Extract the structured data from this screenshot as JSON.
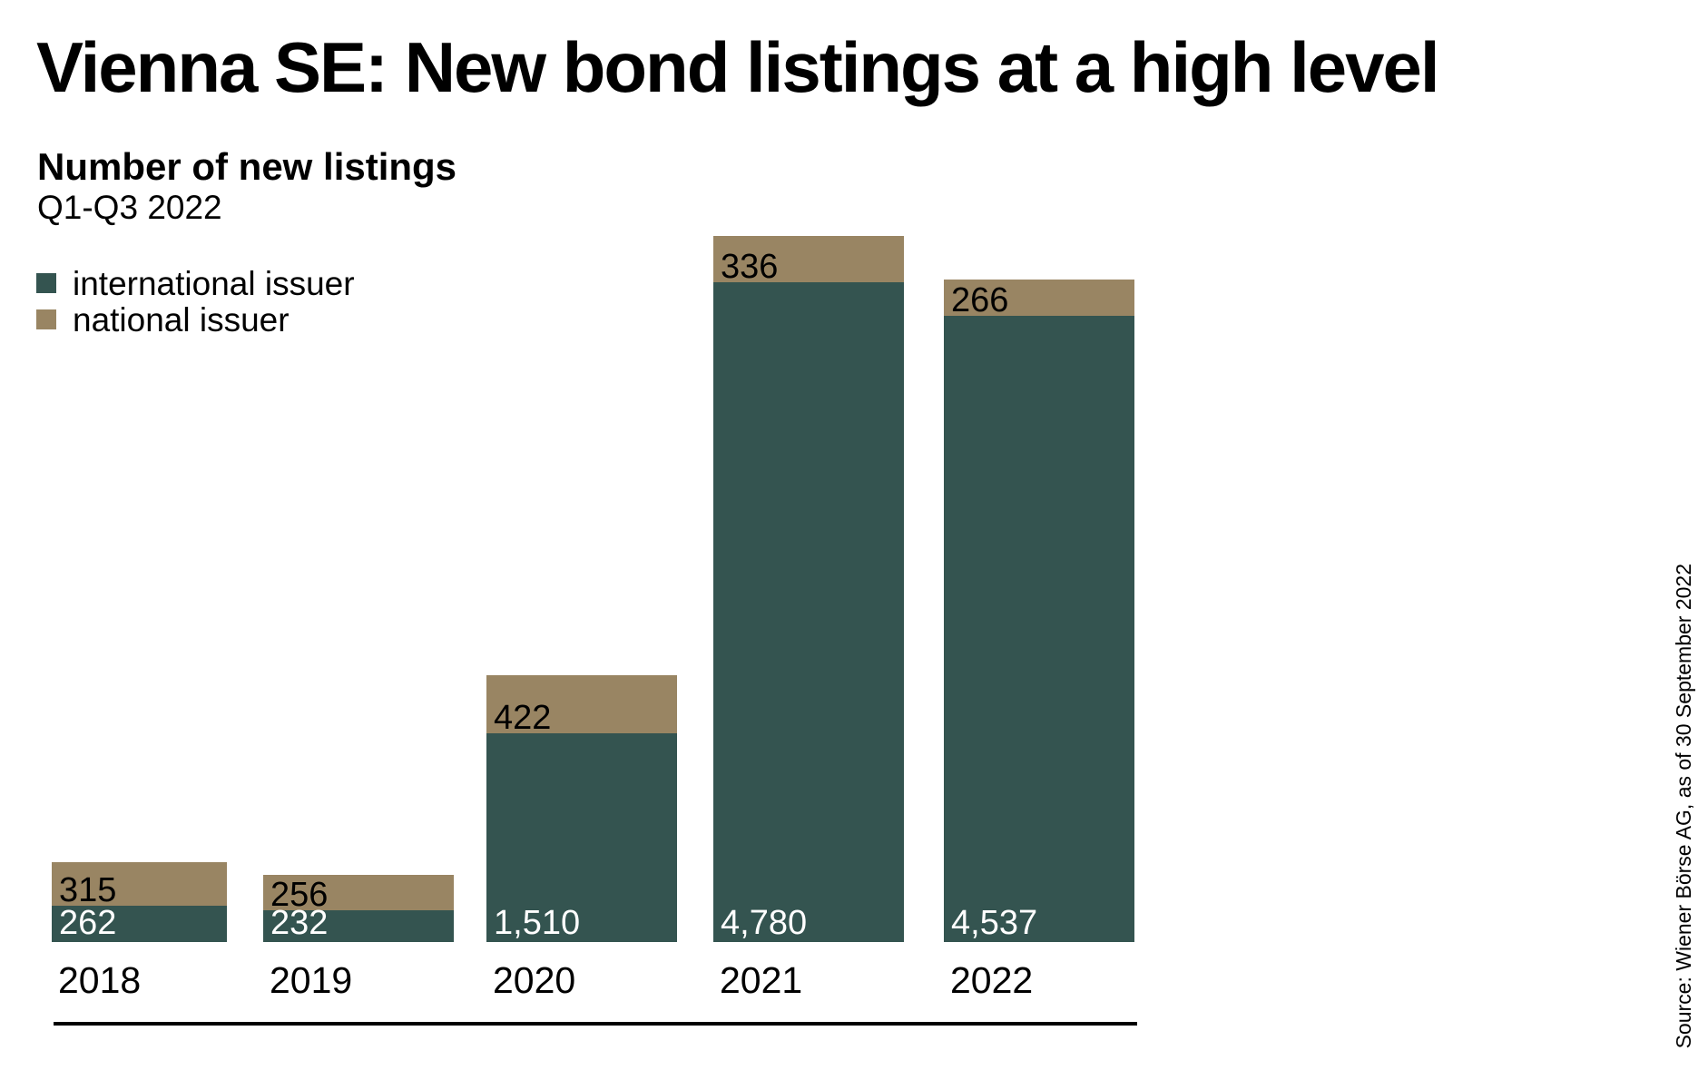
{
  "header": {
    "title": "Vienna SE: New bond listings at a high level",
    "subtitle": "Number of new listings",
    "period": "Q1-Q3 2022"
  },
  "legend": {
    "items": [
      {
        "label": "international issuer",
        "color": "#345450"
      },
      {
        "label": "national issuer",
        "color": "#998563"
      }
    ]
  },
  "source_note": "Source: Wiener Börse AG, as of 30 September 2022",
  "colors": {
    "international_issuer": "#345450",
    "national_issuer": "#998563",
    "label_on_international": "#ffffff",
    "label_on_national": "#000000",
    "axis_line": "#000000",
    "background": "#ffffff"
  },
  "chart_data": {
    "type": "bar",
    "stacked": true,
    "title": "Number of new listings",
    "period": "Q1-Q3 2022",
    "categories": [
      "2018",
      "2019",
      "2020",
      "2021",
      "2022"
    ],
    "series": [
      {
        "name": "international issuer",
        "values": [
          262,
          232,
          1510,
          4780,
          4537
        ],
        "labels": [
          "262",
          "232",
          "1,510",
          "4,780",
          "4,537"
        ],
        "color": "#345450",
        "label_color": "#ffffff"
      },
      {
        "name": "national issuer",
        "values": [
          315,
          256,
          422,
          336,
          266
        ],
        "labels": [
          "315",
          "256",
          "422",
          "336",
          "266"
        ],
        "color": "#998563",
        "label_color": "#000000"
      }
    ],
    "totals": [
      577,
      488,
      1932,
      5116,
      4803
    ],
    "legend_position": "top-left",
    "grid": false,
    "value_axis_shown": false,
    "value_labels_inside_bars": true
  }
}
